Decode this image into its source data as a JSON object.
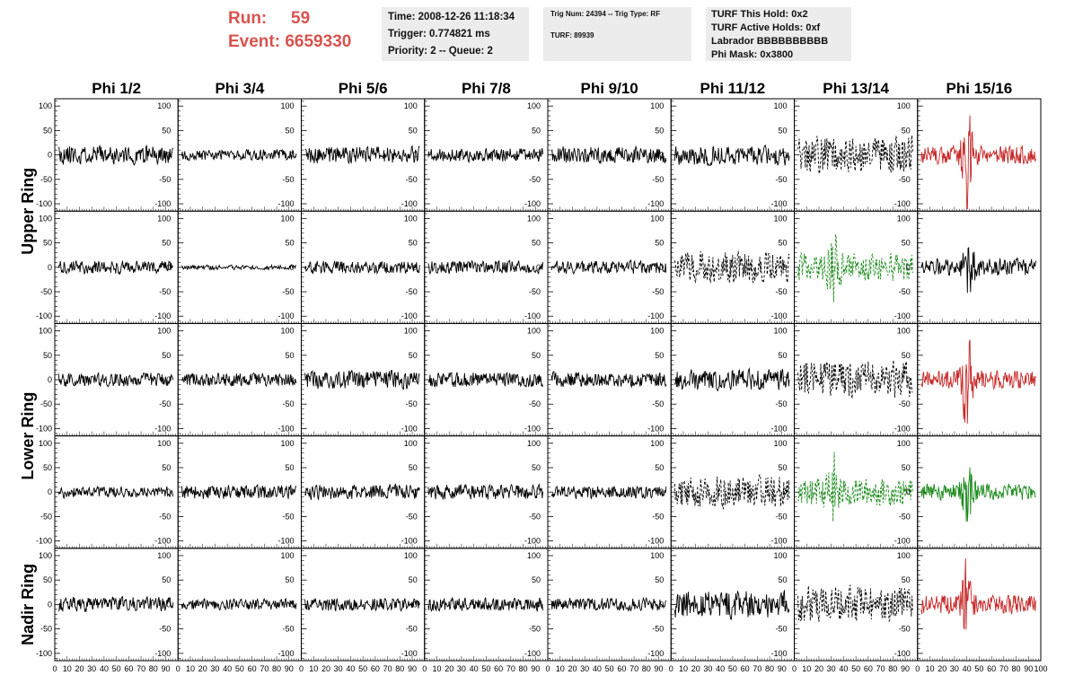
{
  "header": {
    "run_label": "Run:",
    "run_value": "59",
    "event_label": "Event:",
    "event_value": "6659330",
    "time_line": "Time: 2008-12-26 11:18:34",
    "trigger_line": "Trigger: 0.774821 ms",
    "priority_line": "Priority: 2 -- Queue: 2",
    "trig_line": "Trig Num: 24394 -- Trig Type: RF",
    "turf_line": "TURF: 89939",
    "turf_hold_line": "TURF This Hold: 0x2",
    "turf_active_line": "TURF Active Holds: 0xf",
    "labrador_line": "Labrador BBBBBBBBBB",
    "phi_mask_line": "Phi Mask: 0x3800"
  },
  "chart_data": {
    "type": "line",
    "columns": [
      "Phi 1/2",
      "Phi 3/4",
      "Phi 5/6",
      "Phi 7/8",
      "Phi 9/10",
      "Phi 11/12",
      "Phi 13/14",
      "Phi 15/16"
    ],
    "ring_labels": [
      {
        "text": "Upper Ring",
        "rows": [
          0,
          1
        ]
      },
      {
        "text": "Lower Ring",
        "rows": [
          2,
          3
        ]
      },
      {
        "text": "Nadir Ring",
        "rows": [
          4
        ]
      }
    ],
    "xlim": [
      0,
      100
    ],
    "ylim": [
      -115,
      115
    ],
    "x_ticks": [
      0,
      10,
      20,
      30,
      40,
      50,
      60,
      70,
      80,
      90
    ],
    "x_tick_labels_last_panel": [
      0,
      10,
      20,
      30,
      40,
      50,
      60,
      70,
      80,
      90,
      100
    ],
    "y_ticks": [
      -100,
      -50,
      0,
      50,
      100
    ],
    "x_range": [
      3,
      96
    ],
    "colors": {
      "black": "#000000",
      "red": "#c62828",
      "green": "#1b8a1b"
    },
    "panels": [
      [
        {
          "color": "black",
          "style": "solid",
          "amp": 20,
          "seed": 11
        },
        {
          "color": "black",
          "style": "solid",
          "amp": 12,
          "seed": 12
        },
        {
          "color": "black",
          "style": "solid",
          "amp": 18,
          "seed": 13
        },
        {
          "color": "black",
          "style": "solid",
          "amp": 15,
          "seed": 14
        },
        {
          "color": "black",
          "style": "solid",
          "amp": 18,
          "seed": 15
        },
        {
          "color": "black",
          "style": "solid",
          "amp": 22,
          "seed": 16
        },
        {
          "color": "black",
          "style": "dashed",
          "amp": 40,
          "seed": 17
        },
        {
          "color": "red",
          "style": "solid",
          "amp": 20,
          "seed": 18,
          "pulse": {
            "center": 40,
            "amp": 100
          }
        }
      ],
      [
        {
          "color": "black",
          "style": "solid",
          "amp": 14,
          "seed": 21
        },
        {
          "color": "black",
          "style": "solid",
          "amp": 5,
          "seed": 22
        },
        {
          "color": "black",
          "style": "solid",
          "amp": 14,
          "seed": 23
        },
        {
          "color": "black",
          "style": "solid",
          "amp": 14,
          "seed": 24
        },
        {
          "color": "black",
          "style": "solid",
          "amp": 14,
          "seed": 25
        },
        {
          "color": "black",
          "style": "dashed",
          "amp": 35,
          "seed": 26
        },
        {
          "color": "green",
          "style": "dashed",
          "amp": 30,
          "seed": 27,
          "pulse": {
            "center": 32,
            "amp": 60
          }
        },
        {
          "color": "black",
          "style": "solid",
          "amp": 20,
          "seed": 28,
          "pulse": {
            "center": 42,
            "amp": 50
          }
        }
      ],
      [
        {
          "color": "black",
          "style": "solid",
          "amp": 15,
          "seed": 31
        },
        {
          "color": "black",
          "style": "solid",
          "amp": 14,
          "seed": 32
        },
        {
          "color": "black",
          "style": "solid",
          "amp": 20,
          "seed": 33
        },
        {
          "color": "black",
          "style": "solid",
          "amp": 16,
          "seed": 34
        },
        {
          "color": "black",
          "style": "solid",
          "amp": 16,
          "seed": 35
        },
        {
          "color": "black",
          "style": "solid",
          "amp": 22,
          "seed": 36
        },
        {
          "color": "black",
          "style": "dashed",
          "amp": 40,
          "seed": 37
        },
        {
          "color": "red",
          "style": "solid",
          "amp": 20,
          "seed": 38,
          "pulse": {
            "center": 40,
            "amp": 90
          }
        }
      ],
      [
        {
          "color": "black",
          "style": "solid",
          "amp": 12,
          "seed": 41
        },
        {
          "color": "black",
          "style": "solid",
          "amp": 15,
          "seed": 42
        },
        {
          "color": "black",
          "style": "solid",
          "amp": 16,
          "seed": 43
        },
        {
          "color": "black",
          "style": "solid",
          "amp": 16,
          "seed": 44
        },
        {
          "color": "black",
          "style": "solid",
          "amp": 14,
          "seed": 45
        },
        {
          "color": "black",
          "style": "dashed",
          "amp": 35,
          "seed": 46
        },
        {
          "color": "green",
          "style": "dashed",
          "amp": 30,
          "seed": 47,
          "pulse": {
            "center": 32,
            "amp": 60
          }
        },
        {
          "color": "green",
          "style": "solid",
          "amp": 18,
          "seed": 48,
          "pulse": {
            "center": 40,
            "amp": 80
          }
        }
      ],
      [
        {
          "color": "black",
          "style": "solid",
          "amp": 16,
          "seed": 51
        },
        {
          "color": "black",
          "style": "solid",
          "amp": 12,
          "seed": 52
        },
        {
          "color": "black",
          "style": "solid",
          "amp": 14,
          "seed": 53
        },
        {
          "color": "black",
          "style": "solid",
          "amp": 14,
          "seed": 54
        },
        {
          "color": "black",
          "style": "solid",
          "amp": 14,
          "seed": 55
        },
        {
          "color": "black",
          "style": "solid",
          "amp": 30,
          "seed": 56
        },
        {
          "color": "black",
          "style": "dashed",
          "amp": 40,
          "seed": 57
        },
        {
          "color": "red",
          "style": "solid",
          "amp": 20,
          "seed": 58,
          "pulse": {
            "center": 40,
            "amp": 85
          }
        }
      ]
    ]
  }
}
